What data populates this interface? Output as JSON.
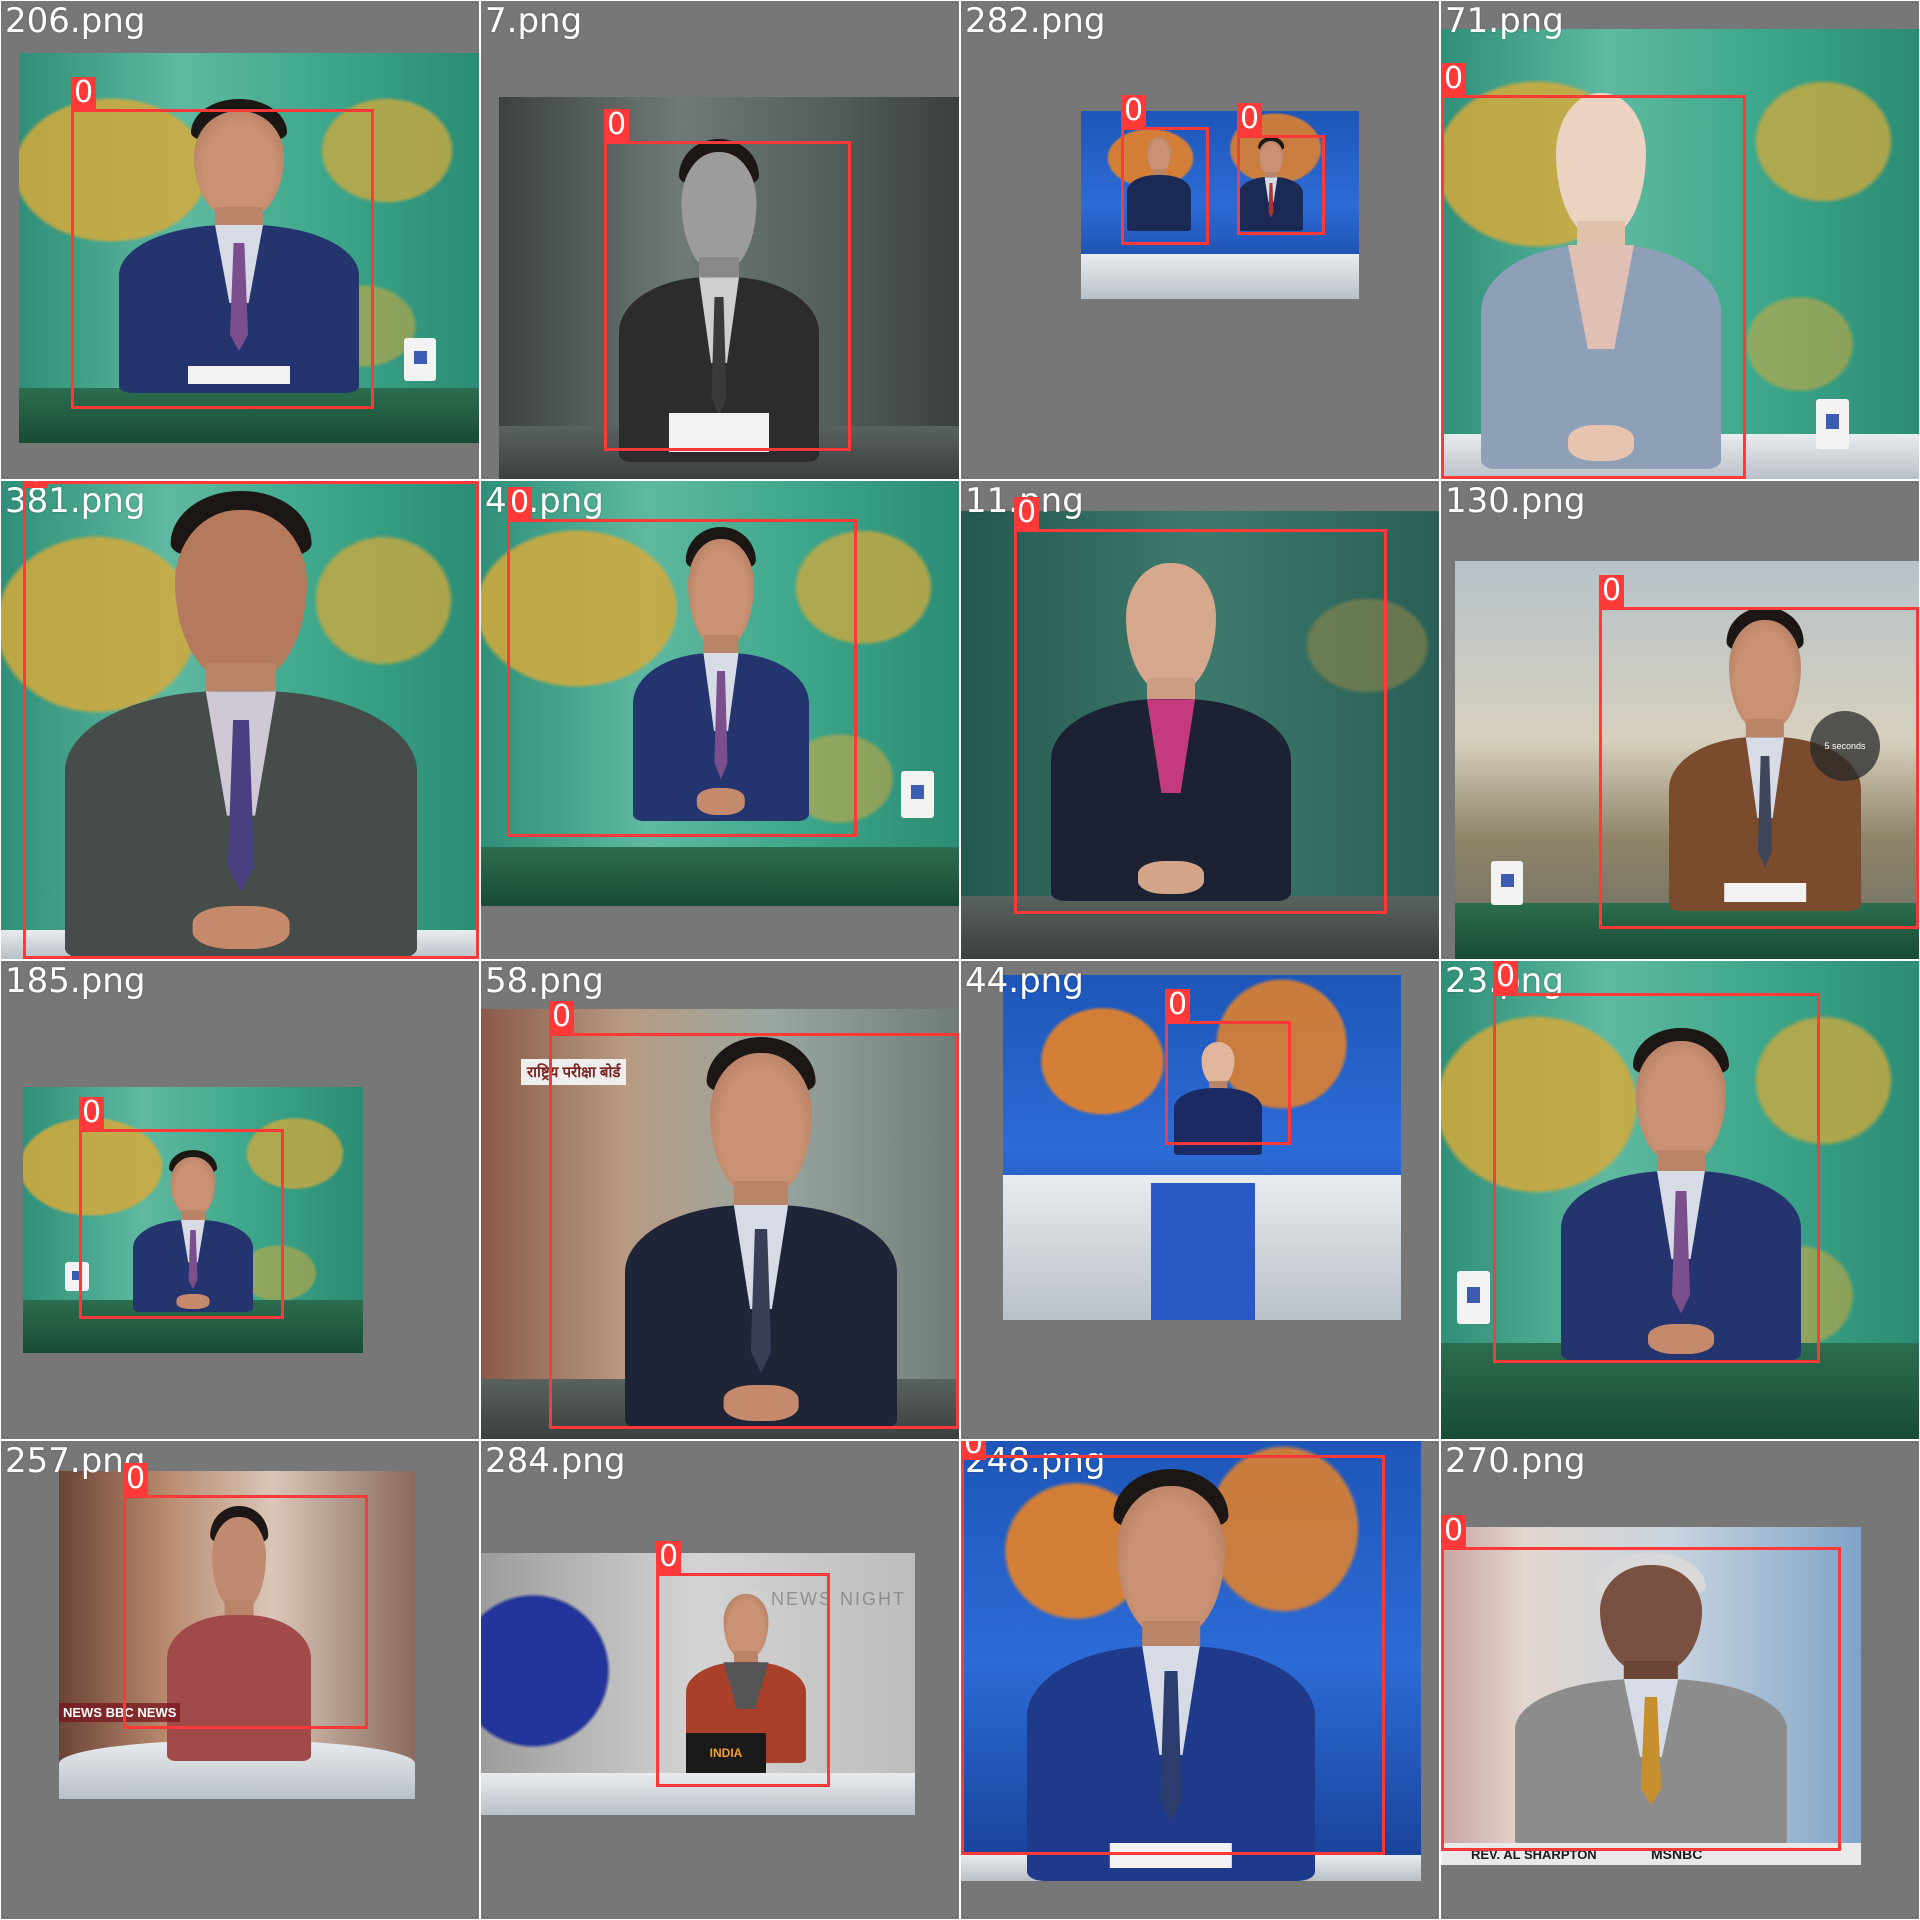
{
  "colors": {
    "box": "#ff3838",
    "tile_bg": "#727272",
    "label": "#ffffff"
  },
  "tiles": [
    {
      "label": "206.png",
      "box_class": "0"
    },
    {
      "label": "7.png",
      "box_class": "0"
    },
    {
      "label": "282.png",
      "box_class": "0",
      "box_class_2": "0"
    },
    {
      "label": "71.png",
      "box_class": "0"
    },
    {
      "label": "381.png",
      "box_class": "0"
    },
    {
      "label": "40.png",
      "box_class": "0"
    },
    {
      "label": "11.png",
      "box_class": "0"
    },
    {
      "label": "130.png",
      "box_class": "0",
      "overlay": "5 seconds"
    },
    {
      "label": "185.png",
      "box_class": "0"
    },
    {
      "label": "58.png",
      "box_class": "0",
      "sign": "राष्ट्रिय परीक्षा बोर्ड"
    },
    {
      "label": "44.png",
      "box_class": "0"
    },
    {
      "label": "23.png",
      "box_class": "0"
    },
    {
      "label": "257.png",
      "box_class": "0",
      "ticker": "NEWS BBC NEWS"
    },
    {
      "label": "284.png",
      "box_class": "0",
      "backdrop": "NEWS NIGHT",
      "laptop": "INDIA"
    },
    {
      "label": "248.png",
      "box_class": "0"
    },
    {
      "label": "270.png",
      "box_class": "0",
      "lower_third": "REV. AL SHARPTON",
      "network": "MSNBC"
    }
  ]
}
